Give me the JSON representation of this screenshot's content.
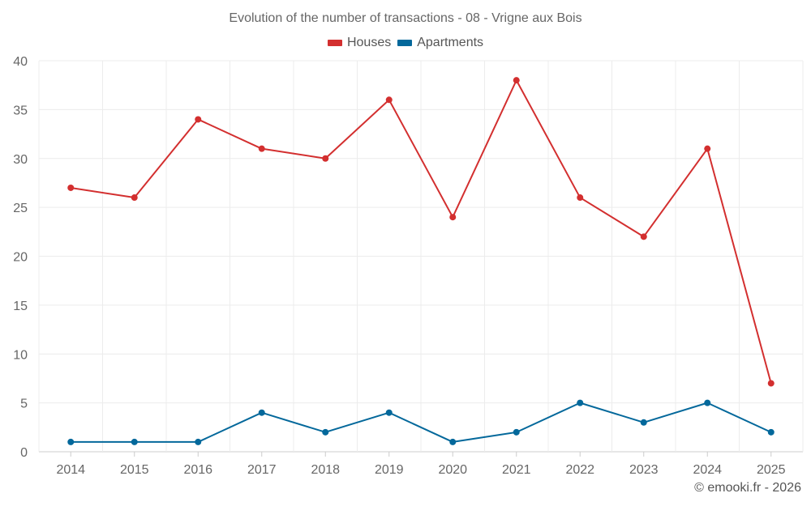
{
  "chart_data": {
    "type": "line",
    "title": "Evolution of the number of transactions - 08 - Vrigne aux Bois",
    "categories": [
      "2014",
      "2015",
      "2016",
      "2017",
      "2018",
      "2019",
      "2020",
      "2021",
      "2022",
      "2023",
      "2024",
      "2025"
    ],
    "series": [
      {
        "name": "Houses",
        "color": "#d32f2f",
        "values": [
          27,
          26,
          34,
          31,
          30,
          36,
          24,
          38,
          26,
          22,
          31,
          7
        ]
      },
      {
        "name": "Apartments",
        "color": "#03689b",
        "values": [
          1,
          1,
          1,
          4,
          2,
          4,
          1,
          2,
          5,
          3,
          5,
          2
        ]
      }
    ],
    "ylim": [
      0,
      40
    ],
    "yticks": [
      "0",
      "5",
      "10",
      "15",
      "20",
      "25",
      "30",
      "35",
      "40"
    ],
    "grid": true,
    "legend_position": "top"
  },
  "credit": "© emooki.fr - 2026"
}
